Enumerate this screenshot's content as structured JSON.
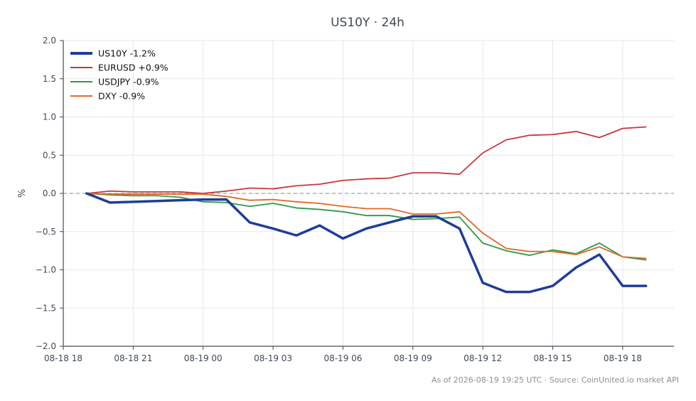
{
  "chart_data": {
    "type": "line",
    "title": "US10Y · 24h",
    "ylabel": "%",
    "ylim": [
      -2.0,
      2.0
    ],
    "yticks": [
      2.0,
      1.5,
      1.0,
      0.5,
      0.0,
      -0.5,
      -1.0,
      -1.5,
      -2.0
    ],
    "ytick_labels": [
      "2.0",
      "1.5",
      "1.0",
      "0.5",
      "0.0",
      "−0.5",
      "−1.0",
      "−1.5",
      "−2.0"
    ],
    "x_hours": [
      0,
      1,
      2,
      3,
      4,
      5,
      6,
      7,
      8,
      9,
      10,
      11,
      12,
      13,
      14,
      15,
      16,
      17,
      18,
      19,
      20,
      21,
      22,
      23,
      24
    ],
    "xlim_hours": [
      -1,
      25.2
    ],
    "xticks_hours": [
      -1,
      2,
      5,
      8,
      11,
      14,
      17,
      20,
      23
    ],
    "xtick_labels": [
      "08-18 18",
      "08-18 21",
      "08-19 00",
      "08-19 03",
      "08-19 06",
      "08-19 09",
      "08-19 12",
      "08-19 15",
      "08-19 18"
    ],
    "grid": true,
    "zero_line": true,
    "legend_position": "top-left",
    "series": [
      {
        "name": "US10Y -1.2%",
        "color": "#1f3d99",
        "width": 3.5,
        "values": [
          0.0,
          -0.12,
          -0.11,
          -0.1,
          -0.09,
          -0.08,
          -0.08,
          -0.38,
          -0.46,
          -0.55,
          -0.42,
          -0.59,
          -0.46,
          -0.38,
          -0.3,
          -0.3,
          -0.46,
          -1.17,
          -1.29,
          -1.29,
          -1.21,
          -0.97,
          -0.8,
          -1.21,
          -1.21
        ]
      },
      {
        "name": "EURUSD +0.9%",
        "color": "#c8373a",
        "width": 1.8,
        "values": [
          0.0,
          0.03,
          0.02,
          0.02,
          0.02,
          0.0,
          0.03,
          0.07,
          0.06,
          0.1,
          0.12,
          0.17,
          0.19,
          0.2,
          0.27,
          0.27,
          0.25,
          0.53,
          0.7,
          0.76,
          0.77,
          0.81,
          0.73,
          0.85,
          0.87
        ]
      },
      {
        "name": "USDJPY -0.9%",
        "color": "#2f9a48",
        "width": 1.8,
        "values": [
          0.0,
          -0.02,
          -0.03,
          -0.03,
          -0.05,
          -0.11,
          -0.12,
          -0.17,
          -0.13,
          -0.19,
          -0.21,
          -0.24,
          -0.29,
          -0.29,
          -0.34,
          -0.33,
          -0.31,
          -0.65,
          -0.75,
          -0.81,
          -0.74,
          -0.79,
          -0.65,
          -0.83,
          -0.87
        ]
      },
      {
        "name": "DXY -0.9%",
        "color": "#e06a26",
        "width": 1.8,
        "values": [
          0.0,
          -0.01,
          -0.01,
          -0.01,
          -0.01,
          -0.01,
          -0.04,
          -0.09,
          -0.08,
          -0.11,
          -0.13,
          -0.17,
          -0.2,
          -0.2,
          -0.27,
          -0.27,
          -0.24,
          -0.52,
          -0.72,
          -0.76,
          -0.76,
          -0.8,
          -0.7,
          -0.83,
          -0.85
        ]
      }
    ],
    "footer": "As of 2026-08-19 19:25 UTC · Source: CoinUnited.io market API"
  },
  "colors": {
    "axis": "#3f4a57",
    "grid": "#e8e8e8",
    "zero_line": "#7d8d9e",
    "background": "#ffffff"
  }
}
